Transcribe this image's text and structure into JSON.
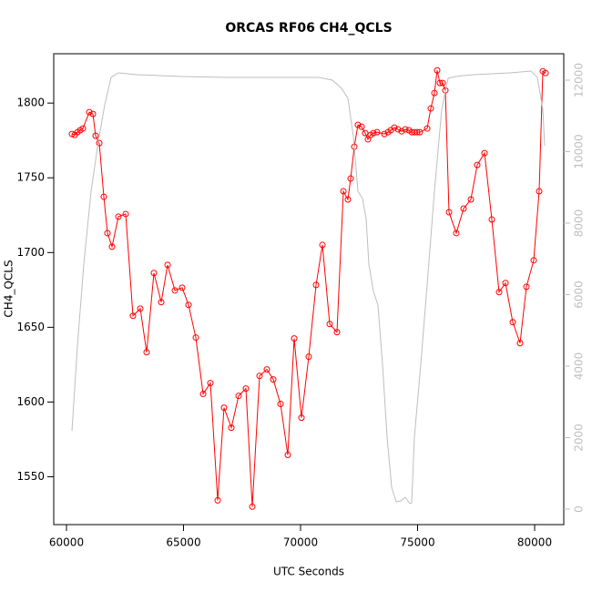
{
  "chart_data": {
    "type": "line",
    "title": "ORCAS RF06 CH4_QCLS",
    "x_label": "UTC Seconds",
    "y_label": "CH4_QCLS",
    "xlim": [
      59455,
      81245
    ],
    "xticks": [
      60000,
      65000,
      70000,
      75000,
      80000
    ],
    "ylim": [
      1518,
      1833
    ],
    "yticks": [
      1550,
      1600,
      1650,
      1700,
      1750,
      1800
    ],
    "y2lim": [
      -433,
      12739
    ],
    "y2ticks": [
      0,
      2000,
      4000,
      6000,
      8000,
      10000,
      12000
    ],
    "series": [
      {
        "color": "#ff0000",
        "axis": "y",
        "markers": true,
        "x": [
          60233,
          60350,
          60467,
          60584,
          60700,
          60973,
          61128,
          61245,
          61401,
          61595,
          61751,
          61946,
          62218,
          62529,
          62840,
          63152,
          63424,
          63735,
          64047,
          64319,
          64630,
          64942,
          65214,
          65525,
          65837,
          66148,
          66459,
          66731,
          67043,
          67354,
          67665,
          67938,
          68249,
          68560,
          68833,
          69144,
          69455,
          69728,
          70039,
          70350,
          70662,
          70934,
          71245,
          71556,
          71829,
          72023,
          72140,
          72296,
          72451,
          72607,
          72762,
          72879,
          72996,
          73113,
          73268,
          73580,
          73736,
          73852,
          74008,
          74163,
          74319,
          74475,
          74630,
          74747,
          74864,
          74981,
          75097,
          75408,
          75564,
          75720,
          75836,
          75953,
          76070,
          76187,
          76342,
          76653,
          76965,
          77276,
          77548,
          77860,
          78171,
          78482,
          78755,
          79066,
          79377,
          79650,
          79961,
          80194,
          80350,
          80467
        ],
        "values": [
          1779.3,
          1778.7,
          1780.5,
          1781.8,
          1783.0,
          1793.9,
          1792.7,
          1778.1,
          1773.2,
          1737.3,
          1713.0,
          1703.9,
          1724.0,
          1725.8,
          1657.7,
          1662.5,
          1633.3,
          1686.3,
          1666.8,
          1691.7,
          1674.7,
          1676.5,
          1665.0,
          1643.1,
          1605.4,
          1612.7,
          1534.2,
          1596.2,
          1582.8,
          1604.1,
          1609.0,
          1530.0,
          1617.5,
          1621.8,
          1615.1,
          1598.7,
          1564.6,
          1642.5,
          1589.5,
          1630.3,
          1678.3,
          1705.1,
          1652.2,
          1646.7,
          1741.0,
          1735.5,
          1749.5,
          1770.8,
          1785.4,
          1784.2,
          1779.9,
          1775.7,
          1778.7,
          1779.9,
          1780.5,
          1779.3,
          1780.5,
          1781.8,
          1783.6,
          1782.4,
          1781.1,
          1782.4,
          1781.8,
          1780.5,
          1780.5,
          1780.5,
          1780.5,
          1783.0,
          1796.4,
          1806.7,
          1821.9,
          1813.4,
          1813.4,
          1808.5,
          1727.0,
          1713.0,
          1729.4,
          1735.5,
          1758.6,
          1766.5,
          1722.1,
          1673.5,
          1679.6,
          1653.4,
          1639.4,
          1677.1,
          1694.8,
          1741.0,
          1821.3,
          1820.1
        ]
      },
      {
        "color": "#bebebe",
        "axis": "y2",
        "markers": false,
        "x": [
          60233,
          60467,
          60739,
          61051,
          61362,
          61634,
          61907,
          62218,
          62996,
          64942,
          66887,
          68833,
          70778,
          71362,
          71751,
          72023,
          72257,
          72451,
          72646,
          72801,
          72918,
          73113,
          73307,
          73502,
          73697,
          73891,
          74086,
          74280,
          74475,
          74669,
          74747,
          74864,
          75136,
          75447,
          75720,
          76031,
          76303,
          76614,
          77393,
          78949,
          79844,
          80117,
          80350,
          80428
        ],
        "values": [
          2191,
          4561,
          6854,
          8893,
          10294,
          11313,
          12078,
          12205,
          12154,
          12103,
          12078,
          12078,
          12078,
          12001,
          11772,
          11491,
          10421,
          8893,
          8689,
          8128,
          6854,
          6090,
          5708,
          4052,
          2013,
          612,
          204,
          229,
          331,
          153,
          178,
          2013,
          4052,
          6599,
          8893,
          11186,
          12052,
          12103,
          12154,
          12205,
          12256,
          12078,
          11186,
          10167
        ]
      }
    ]
  }
}
